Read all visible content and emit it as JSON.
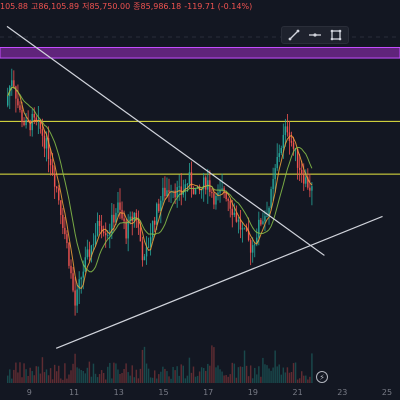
{
  "ohlc": {
    "prev_tail": "105.88",
    "high": "고86,105.89",
    "low": "저85,750.00",
    "close": "종85,986.18",
    "change": "-119.71 (-0.14%)"
  },
  "toolbar": {
    "icons": [
      "draw-line-icon",
      "line-tool-icon",
      "fullscreen-icon"
    ]
  },
  "colors": {
    "background": "#131722",
    "up": "#26a69a",
    "down": "#ef5350",
    "ma_short": "#f6a23a",
    "ma_long": "#8bc34a",
    "band_fill": "#7b2a99",
    "level_line": "#e8e840",
    "trendline": "#d1d4dc"
  },
  "chart_data": {
    "type": "candlestick",
    "title": "",
    "x_ticks": [
      "9",
      "11",
      "13",
      "15",
      "17",
      "19",
      "21",
      "23",
      "25"
    ],
    "x_range": [
      8,
      25
    ],
    "y_range": [
      84400,
      88000
    ],
    "grid": false,
    "resistance_zone": [
      87450,
      87550
    ],
    "horizontal_levels": [
      86850,
      86350
    ],
    "trendlines": [
      {
        "from": [
          8.0,
          87750
        ],
        "to": [
          22.2,
          85580
        ]
      },
      {
        "from": [
          10.2,
          84700
        ],
        "to": [
          24.8,
          85950
        ]
      }
    ],
    "price_path": [
      [
        8.0,
        87000
      ],
      [
        8.3,
        87300
      ],
      [
        8.6,
        86950
      ],
      [
        8.9,
        86800
      ],
      [
        9.2,
        86850
      ],
      [
        9.6,
        86760
      ],
      [
        10.0,
        86500
      ],
      [
        10.4,
        86100
      ],
      [
        10.8,
        85600
      ],
      [
        11.1,
        85100
      ],
      [
        11.4,
        85400
      ],
      [
        11.8,
        85650
      ],
      [
        12.2,
        85900
      ],
      [
        12.6,
        85800
      ],
      [
        13.0,
        86050
      ],
      [
        13.4,
        85800
      ],
      [
        13.8,
        86000
      ],
      [
        14.2,
        85500
      ],
      [
        14.6,
        85900
      ],
      [
        15.0,
        86150
      ],
      [
        15.4,
        86250
      ],
      [
        15.8,
        86150
      ],
      [
        16.2,
        86300
      ],
      [
        16.6,
        86150
      ],
      [
        17.0,
        86300
      ],
      [
        17.4,
        86100
      ],
      [
        17.8,
        86200
      ],
      [
        18.2,
        86000
      ],
      [
        18.6,
        85800
      ],
      [
        19.0,
        85650
      ],
      [
        19.4,
        85900
      ],
      [
        19.8,
        86050
      ],
      [
        20.2,
        86550
      ],
      [
        20.6,
        86800
      ],
      [
        21.0,
        86500
      ],
      [
        21.4,
        86300
      ],
      [
        21.7,
        86200
      ]
    ],
    "volume_scale": [
      0,
      1
    ]
  }
}
